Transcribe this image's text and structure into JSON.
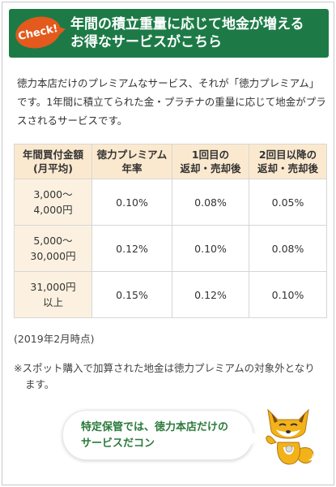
{
  "header": {
    "badge": "Check!",
    "title_line1": "年間の積立重量に応じて地金が増える",
    "title_line2": "お得なサービスがこちら"
  },
  "intro": {
    "text": "徳力本店だけのプレミアムなサービス、それが「徳力プレミアム」です。1年間に積立てられた金・プラチナの重量に応じて地金がプラスされるサービスです。"
  },
  "table": {
    "headers": [
      [
        "年間買付金額",
        "(月平均)"
      ],
      [
        "徳力プレミアム",
        "年率"
      ],
      [
        "1回目の",
        "返却・売却後"
      ],
      [
        "2回目以降の",
        "返却・売却後"
      ]
    ],
    "rows": [
      {
        "amount": [
          "3,000〜",
          "4,000円"
        ],
        "premium": "0.10%",
        "first": "0.08%",
        "second": "0.05%"
      },
      {
        "amount": [
          "5,000〜",
          "30,000円"
        ],
        "premium": "0.12%",
        "first": "0.10%",
        "second": "0.08%"
      },
      {
        "amount": [
          "31,000円",
          "以上"
        ],
        "premium": "0.15%",
        "first": "0.12%",
        "second": "0.10%"
      }
    ]
  },
  "note_date": "(2019年2月時点)",
  "footnote": "※スポット購入で加算された地金は徳力プレミアムの対象外となります。",
  "bubble": {
    "line1": "特定保管では、徳力本店だけの",
    "line2": "サービスだコン"
  },
  "colors": {
    "header_green": "#1d7a47",
    "badge_orange": "#e35a1c",
    "table_header_bg": "#fbe9cf",
    "bubble_text_green": "#2a7a3b"
  },
  "icons": {
    "mascot": "fox-mascot-icon"
  }
}
